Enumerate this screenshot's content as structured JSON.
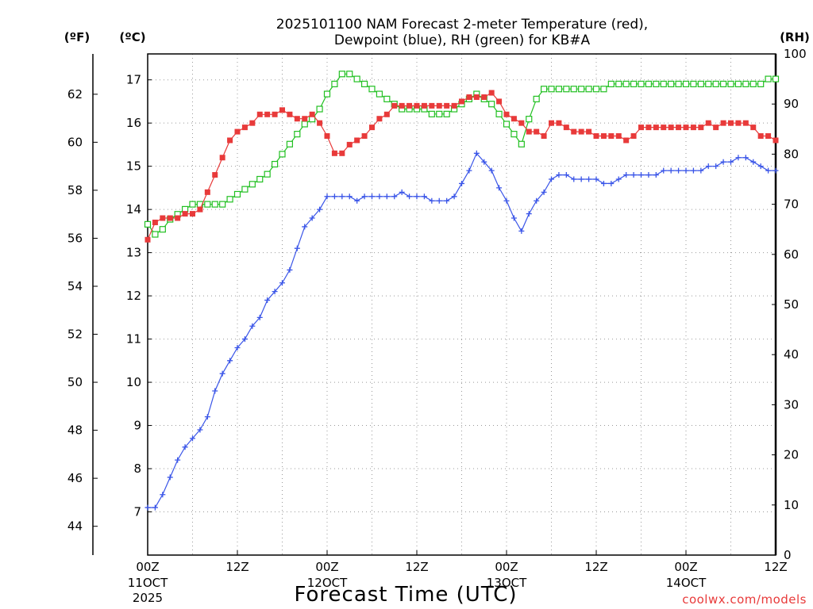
{
  "chart_data": {
    "type": "line",
    "title": "2025101100 NAM Forecast 2-meter Temperature (red),",
    "title_line2": "Dewpoint (blue), RH (green) for KB#A",
    "xlabel": "Forecast Time (UTC)",
    "credit": "coolwx.com/models",
    "unit_f": "(ºF)",
    "unit_c": "(ºC)",
    "unit_rh": "(RH)",
    "x_unit": "forecast hour",
    "xlim": [
      0,
      84
    ],
    "ylim_c": [
      6.0,
      17.6
    ],
    "ylim_rh": [
      0,
      100
    ],
    "ylim_f": [
      42.8,
      63.68
    ],
    "grid": true,
    "x_ticks": [
      {
        "hour": 0,
        "line1": "00Z",
        "line2": "11OCT",
        "line3": "2025"
      },
      {
        "hour": 12,
        "line1": "12Z",
        "line2": "",
        "line3": ""
      },
      {
        "hour": 24,
        "line1": "00Z",
        "line2": "12OCT",
        "line3": ""
      },
      {
        "hour": 36,
        "line1": "12Z",
        "line2": "",
        "line3": ""
      },
      {
        "hour": 48,
        "line1": "00Z",
        "line2": "13OCT",
        "line3": ""
      },
      {
        "hour": 60,
        "line1": "12Z",
        "line2": "",
        "line3": ""
      },
      {
        "hour": 72,
        "line1": "00Z",
        "line2": "14OCT",
        "line3": ""
      },
      {
        "hour": 84,
        "line1": "12Z",
        "line2": "",
        "line3": ""
      }
    ],
    "c_ticks": [
      "7",
      "8",
      "9",
      "10",
      "11",
      "12",
      "13",
      "14",
      "15",
      "16",
      "17"
    ],
    "f_ticks": [
      "44",
      "46",
      "48",
      "50",
      "52",
      "54",
      "56",
      "58",
      "60",
      "62"
    ],
    "rh_ticks": [
      "0",
      "10",
      "20",
      "30",
      "40",
      "50",
      "60",
      "70",
      "80",
      "90",
      "100"
    ],
    "series": [
      {
        "name": "Temperature",
        "color": "#e83a3a",
        "marker": "filled-square",
        "x": [
          0,
          1,
          2,
          3,
          4,
          5,
          6,
          7,
          8,
          9,
          10,
          11,
          12,
          13,
          14,
          15,
          16,
          17,
          18,
          19,
          20,
          21,
          22,
          23,
          24,
          25,
          26,
          27,
          28,
          29,
          30,
          31,
          32,
          33,
          34,
          35,
          36,
          37,
          38,
          39,
          40,
          41,
          42,
          43,
          44,
          45,
          46,
          47,
          48,
          49,
          50,
          51,
          52,
          53,
          54,
          55,
          56,
          57,
          58,
          59,
          60,
          61,
          62,
          63,
          64,
          65,
          66,
          67,
          68,
          69,
          70,
          71,
          72,
          73,
          74,
          75,
          76,
          77,
          78,
          79,
          80,
          81,
          82,
          83,
          84
        ],
        "values": [
          13.3,
          13.7,
          13.8,
          13.8,
          13.8,
          13.9,
          13.9,
          14.0,
          14.4,
          14.8,
          15.2,
          15.6,
          15.8,
          15.9,
          16.0,
          16.2,
          16.2,
          16.2,
          16.3,
          16.2,
          16.1,
          16.1,
          16.2,
          16.0,
          15.7,
          15.3,
          15.3,
          15.5,
          15.6,
          15.7,
          15.9,
          16.1,
          16.2,
          16.4,
          16.4,
          16.4,
          16.4,
          16.4,
          16.4,
          16.4,
          16.4,
          16.4,
          16.5,
          16.6,
          16.6,
          16.6,
          16.7,
          16.5,
          16.2,
          16.1,
          16.0,
          15.8,
          15.8,
          15.7,
          16.0,
          16.0,
          15.9,
          15.8,
          15.8,
          15.8,
          15.7,
          15.7,
          15.7,
          15.7,
          15.6,
          15.7,
          15.9,
          15.9,
          15.9,
          15.9,
          15.9,
          15.9,
          15.9,
          15.9,
          15.9,
          16.0,
          15.9,
          16.0,
          16.0,
          16.0,
          16.0,
          15.9,
          15.7,
          15.7,
          15.6
        ]
      },
      {
        "name": "Dewpoint",
        "color": "#3a55e8",
        "marker": "plus",
        "x": [
          0,
          1,
          2,
          3,
          4,
          5,
          6,
          7,
          8,
          9,
          10,
          11,
          12,
          13,
          14,
          15,
          16,
          17,
          18,
          19,
          20,
          21,
          22,
          23,
          24,
          25,
          26,
          27,
          28,
          29,
          30,
          31,
          32,
          33,
          34,
          35,
          36,
          37,
          38,
          39,
          40,
          41,
          42,
          43,
          44,
          45,
          46,
          47,
          48,
          49,
          50,
          51,
          52,
          53,
          54,
          55,
          56,
          57,
          58,
          59,
          60,
          61,
          62,
          63,
          64,
          65,
          66,
          67,
          68,
          69,
          70,
          71,
          72,
          73,
          74,
          75,
          76,
          77,
          78,
          79,
          80,
          81,
          82,
          83,
          84
        ],
        "values": [
          7.1,
          7.1,
          7.4,
          7.8,
          8.2,
          8.5,
          8.7,
          8.9,
          9.2,
          9.8,
          10.2,
          10.5,
          10.8,
          11.0,
          11.3,
          11.5,
          11.9,
          12.1,
          12.3,
          12.6,
          13.1,
          13.6,
          13.8,
          14.0,
          14.3,
          14.3,
          14.3,
          14.3,
          14.2,
          14.3,
          14.3,
          14.3,
          14.3,
          14.3,
          14.4,
          14.3,
          14.3,
          14.3,
          14.2,
          14.2,
          14.2,
          14.3,
          14.6,
          14.9,
          15.3,
          15.1,
          14.9,
          14.5,
          14.2,
          13.8,
          13.5,
          13.9,
          14.2,
          14.4,
          14.7,
          14.8,
          14.8,
          14.7,
          14.7,
          14.7,
          14.7,
          14.6,
          14.6,
          14.7,
          14.8,
          14.8,
          14.8,
          14.8,
          14.8,
          14.9,
          14.9,
          14.9,
          14.9,
          14.9,
          14.9,
          15.0,
          15.0,
          15.1,
          15.1,
          15.2,
          15.2,
          15.1,
          15.0,
          14.9,
          14.9
        ]
      },
      {
        "name": "RH",
        "color": "#22c022",
        "marker": "open-square",
        "x": [
          0,
          1,
          2,
          3,
          4,
          5,
          6,
          7,
          8,
          9,
          10,
          11,
          12,
          13,
          14,
          15,
          16,
          17,
          18,
          19,
          20,
          21,
          22,
          23,
          24,
          25,
          26,
          27,
          28,
          29,
          30,
          31,
          32,
          33,
          34,
          35,
          36,
          37,
          38,
          39,
          40,
          41,
          42,
          43,
          44,
          45,
          46,
          47,
          48,
          49,
          50,
          51,
          52,
          53,
          54,
          55,
          56,
          57,
          58,
          59,
          60,
          61,
          62,
          63,
          64,
          65,
          66,
          67,
          68,
          69,
          70,
          71,
          72,
          73,
          74,
          75,
          76,
          77,
          78,
          79,
          80,
          81,
          82,
          83,
          84
        ],
        "values": [
          66,
          64,
          65,
          67,
          68,
          69,
          70,
          70,
          70,
          70,
          70,
          71,
          72,
          73,
          74,
          75,
          76,
          78,
          80,
          82,
          84,
          86,
          87,
          89,
          92,
          94,
          96,
          96,
          95,
          94,
          93,
          92,
          91,
          90,
          89,
          89,
          89,
          89,
          88,
          88,
          88,
          89,
          90,
          91,
          92,
          91,
          90,
          88,
          86,
          84,
          82,
          87,
          91,
          93,
          93,
          93,
          93,
          93,
          93,
          93,
          93,
          93,
          94,
          94,
          94,
          94,
          94,
          94,
          94,
          94,
          94,
          94,
          94,
          94,
          94,
          94,
          94,
          94,
          94,
          94,
          94,
          94,
          94,
          95,
          95
        ]
      }
    ]
  }
}
